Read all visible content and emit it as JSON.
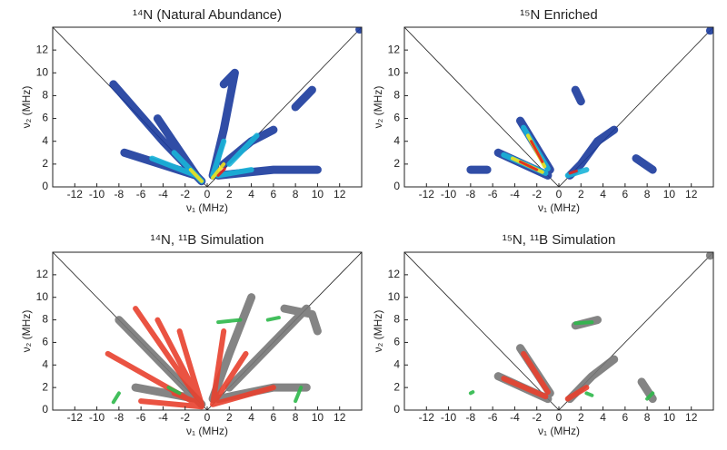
{
  "chart_data": [
    {
      "type": "contour",
      "title": "¹⁴N (Natural Abundance)",
      "xlabel": "ν₁ (MHz)",
      "ylabel": "ν₂ (MHz)",
      "xlim": [
        -14,
        14
      ],
      "ylim": [
        0,
        14
      ],
      "xticks": [
        -12,
        -10,
        -8,
        -6,
        -4,
        -2,
        0,
        2,
        4,
        6,
        8,
        10,
        12
      ],
      "yticks": [
        0,
        2,
        4,
        6,
        8,
        10,
        12
      ],
      "series": [
        {
          "color": "#1a3a9c",
          "x": [
            -0.5,
            -4,
            -8.5,
            null,
            -1,
            -7.5,
            null,
            -1,
            -4.5,
            null,
            0.5,
            1.5,
            2.5,
            null,
            1,
            6,
            10,
            null,
            1.5,
            4,
            6,
            null,
            8,
            9.5,
            null,
            1.5,
            2.5,
            null,
            13.8,
            14
          ],
          "y": [
            0.5,
            4,
            9,
            null,
            1,
            3,
            null,
            1,
            6,
            null,
            1,
            5,
            10,
            null,
            1,
            1.5,
            1.5,
            null,
            2,
            4,
            5,
            null,
            7,
            8.5,
            null,
            9,
            10,
            null,
            13.8,
            14
          ]
        },
        {
          "color": "#19b4d8",
          "x": [
            -0.5,
            -3,
            null,
            -1,
            -5,
            null,
            0.5,
            1.5,
            null,
            1,
            4,
            null,
            2,
            4.5
          ],
          "y": [
            0.5,
            3,
            null,
            1,
            2.5,
            null,
            1,
            4,
            null,
            1,
            1.5,
            null,
            2,
            4.5
          ]
        },
        {
          "color": "#f2e21a",
          "x": [
            -0.5,
            -1.5,
            null,
            0.5,
            1.5
          ],
          "y": [
            0.5,
            1.5,
            null,
            0.8,
            2
          ]
        },
        {
          "color": "#e0211d",
          "x": [
            1,
            1.6
          ],
          "y": [
            1,
            1.6
          ]
        }
      ]
    },
    {
      "type": "contour",
      "title": "¹⁵N Enriched",
      "xlabel": "ν₁ (MHz)",
      "ylabel": "ν₂ (MHz)",
      "xlim": [
        -14,
        14
      ],
      "ylim": [
        0,
        14
      ],
      "xticks": [
        -12,
        -10,
        -8,
        -6,
        -4,
        -2,
        0,
        2,
        4,
        6,
        8,
        10,
        12
      ],
      "yticks": [
        0,
        2,
        4,
        6,
        8,
        10,
        12
      ],
      "series": [
        {
          "color": "#1a3a9c",
          "x": [
            -5.5,
            -1,
            null,
            -3.5,
            -0.8,
            null,
            -8,
            -6.5,
            null,
            1,
            2,
            3.5,
            5,
            null,
            7,
            8.5,
            null,
            1.5,
            2,
            null,
            13.7,
            14
          ],
          "y": [
            3,
            1,
            null,
            5.8,
            1.5,
            null,
            1.5,
            1.5,
            null,
            1,
            2,
            4,
            5,
            null,
            2.5,
            1.5,
            null,
            8.5,
            7.5,
            null,
            13.7,
            14
          ]
        },
        {
          "color": "#19b4d8",
          "x": [
            -5,
            -1.2,
            null,
            -3.2,
            -1,
            null,
            0.8,
            2.5
          ],
          "y": [
            2.8,
            1.2,
            null,
            5.2,
            1.6,
            null,
            1,
            1.5
          ]
        },
        {
          "color": "#f2e21a",
          "x": [
            -4.2,
            -1.5,
            null,
            -2.8,
            -1.3
          ],
          "y": [
            2.5,
            1.3,
            null,
            4.5,
            1.8
          ]
        },
        {
          "color": "#e0211d",
          "x": [
            -3.5,
            -2,
            null,
            -2.5,
            -1.5,
            null,
            1,
            1.6
          ],
          "y": [
            2.2,
            1.5,
            null,
            4,
            2.2,
            null,
            1.2,
            1.4
          ]
        }
      ]
    },
    {
      "type": "contour",
      "title": "¹⁴N, ¹¹B Simulation",
      "xlabel": "ν₁ (MHz)",
      "ylabel": "ν₂ (MHz)",
      "xlim": [
        -14,
        14
      ],
      "ylim": [
        0,
        14
      ],
      "xticks": [
        -12,
        -10,
        -8,
        -6,
        -4,
        -2,
        0,
        2,
        4,
        6,
        8,
        10,
        12
      ],
      "yticks": [
        0,
        2,
        4,
        6,
        8,
        10,
        12
      ],
      "series": [
        {
          "color": "#777777",
          "x": [
            -0.5,
            -4,
            -8,
            null,
            -1,
            -6.5,
            null,
            0.5,
            2,
            4,
            null,
            1,
            6,
            9,
            null,
            2,
            5,
            8,
            9,
            null,
            7,
            9.5,
            10
          ],
          "y": [
            0.5,
            4,
            8,
            null,
            1,
            2,
            null,
            1,
            5,
            10,
            null,
            1,
            2,
            2,
            null,
            2,
            5,
            8,
            9,
            null,
            9,
            8.5,
            7
          ]
        },
        {
          "color": "#e8402e",
          "x": [
            -0.5,
            -9,
            null,
            -0.5,
            -6.5,
            null,
            -0.5,
            -4.5,
            null,
            -0.5,
            -2.5,
            null,
            0.5,
            1.5,
            null,
            0.5,
            3.5,
            null,
            0.5,
            6,
            null,
            -0.5,
            -3,
            null,
            -0.5,
            -6
          ],
          "y": [
            0.3,
            5,
            null,
            0.5,
            9,
            null,
            0.5,
            8,
            null,
            0.5,
            7,
            null,
            0.5,
            7,
            null,
            0.5,
            5,
            null,
            0.5,
            2,
            null,
            0.5,
            1.5,
            null,
            0.3,
            0.8
          ]
        },
        {
          "color": "#2db84a",
          "x": [
            -8.5,
            -8,
            null,
            8,
            8.5,
            null,
            1,
            3,
            null,
            5.5,
            6.5,
            null,
            -2.5,
            -3.5
          ],
          "y": [
            0.7,
            1.5,
            null,
            0.8,
            2,
            null,
            7.8,
            8,
            null,
            8,
            8.2,
            null,
            1.5,
            2
          ]
        }
      ]
    },
    {
      "type": "contour",
      "title": "¹⁵N, ¹¹B Simulation",
      "xlabel": "ν₁ (MHz)",
      "ylabel": "ν₂ (MHz)",
      "xlim": [
        -14,
        14
      ],
      "ylim": [
        0,
        14
      ],
      "xticks": [
        -12,
        -10,
        -8,
        -6,
        -4,
        -2,
        0,
        2,
        4,
        6,
        8,
        10,
        12
      ],
      "yticks": [
        0,
        2,
        4,
        6,
        8,
        10,
        12
      ],
      "series": [
        {
          "color": "#777777",
          "x": [
            -5.5,
            -1,
            null,
            -3.5,
            -0.8,
            null,
            1,
            3,
            5,
            null,
            7.5,
            8.5,
            null,
            1.5,
            3.5,
            null,
            13.7,
            14
          ],
          "y": [
            3,
            1,
            null,
            5.5,
            1.5,
            null,
            1,
            3,
            4.5,
            null,
            2.5,
            1,
            null,
            7.5,
            8,
            null,
            13.7,
            14
          ]
        },
        {
          "color": "#e8402e",
          "x": [
            -5,
            -1.2,
            null,
            -3.2,
            -1,
            null,
            0.8,
            2.5
          ],
          "y": [
            2.8,
            1.2,
            null,
            5,
            1.6,
            null,
            1,
            2
          ]
        },
        {
          "color": "#2db84a",
          "x": [
            -8,
            -7.8,
            null,
            1.5,
            3,
            null,
            8,
            8.5,
            null,
            2.5,
            3
          ],
          "y": [
            1.5,
            1.6,
            null,
            7.7,
            7.8,
            null,
            1,
            1.5,
            null,
            1.5,
            1.3
          ]
        }
      ]
    }
  ]
}
